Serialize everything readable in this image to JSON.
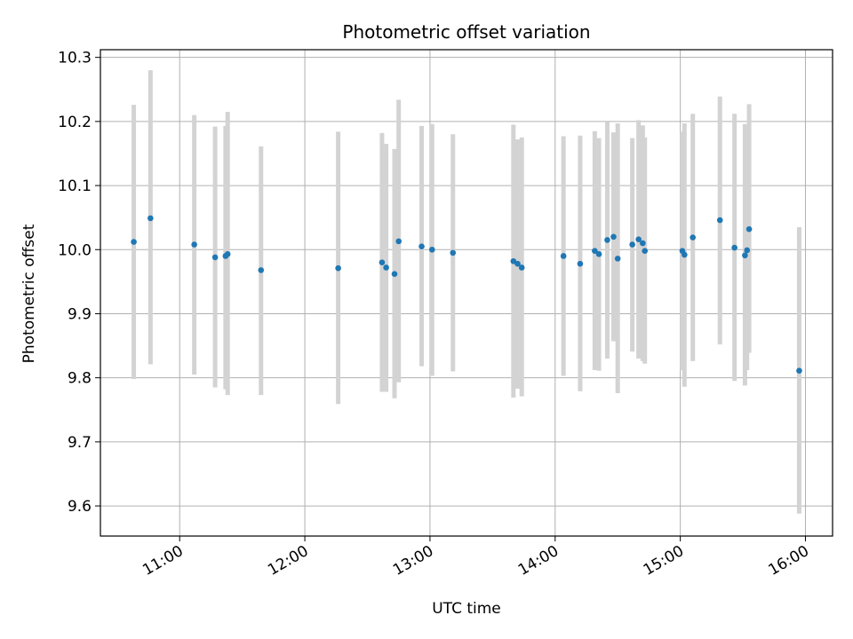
{
  "chart_data": {
    "type": "scatter",
    "title": "Photometric offset variation",
    "xlabel": "UTC time",
    "ylabel": "Photometric offset",
    "x_ticks": [
      "11:00",
      "12:00",
      "13:00",
      "14:00",
      "15:00",
      "16:00"
    ],
    "y_ticks": [
      "9.6",
      "9.7",
      "9.8",
      "9.9",
      "10.0",
      "10.1",
      "10.2",
      "10.3"
    ],
    "xlim": [
      "10:22",
      "16:13"
    ],
    "ylim": [
      9.553,
      10.312
    ],
    "grid": true,
    "colors": {
      "point": "#1f77b4",
      "errorbar": "#d3d3d3",
      "grid": "#b0b0b0"
    },
    "series": [
      {
        "points": [
          {
            "t": "10:38",
            "y": 10.012,
            "lo": 9.798,
            "hi": 10.226
          },
          {
            "t": "10:46",
            "y": 10.049,
            "lo": 9.821,
            "hi": 10.28
          },
          {
            "t": "11:07",
            "y": 10.008,
            "lo": 9.805,
            "hi": 10.21
          },
          {
            "t": "11:17",
            "y": 9.988,
            "lo": 9.785,
            "hi": 10.192
          },
          {
            "t": "11:22",
            "y": 9.99,
            "lo": 9.782,
            "hi": 10.193
          },
          {
            "t": "11:23",
            "y": 9.993,
            "lo": 9.773,
            "hi": 10.215
          },
          {
            "t": "11:39",
            "y": 9.968,
            "lo": 9.773,
            "hi": 10.161
          },
          {
            "t": "12:16",
            "y": 9.971,
            "lo": 9.759,
            "hi": 10.184
          },
          {
            "t": "12:37",
            "y": 9.98,
            "lo": 9.778,
            "hi": 10.182
          },
          {
            "t": "12:39",
            "y": 9.972,
            "lo": 9.778,
            "hi": 10.165
          },
          {
            "t": "12:43",
            "y": 9.962,
            "lo": 9.768,
            "hi": 10.157
          },
          {
            "t": "12:45",
            "y": 10.013,
            "lo": 9.793,
            "hi": 10.234
          },
          {
            "t": "12:56",
            "y": 10.005,
            "lo": 9.818,
            "hi": 10.193
          },
          {
            "t": "13:01",
            "y": 10.0,
            "lo": 9.803,
            "hi": 10.196
          },
          {
            "t": "13:11",
            "y": 9.995,
            "lo": 9.81,
            "hi": 10.18
          },
          {
            "t": "13:40",
            "y": 9.982,
            "lo": 9.769,
            "hi": 10.195
          },
          {
            "t": "13:42",
            "y": 9.978,
            "lo": 9.783,
            "hi": 10.172
          },
          {
            "t": "13:44",
            "y": 9.972,
            "lo": 9.771,
            "hi": 10.175
          },
          {
            "t": "14:04",
            "y": 9.99,
            "lo": 9.803,
            "hi": 10.177
          },
          {
            "t": "14:12",
            "y": 9.978,
            "lo": 9.779,
            "hi": 10.178
          },
          {
            "t": "14:19",
            "y": 9.998,
            "lo": 9.812,
            "hi": 10.185
          },
          {
            "t": "14:21",
            "y": 9.993,
            "lo": 9.811,
            "hi": 10.174
          },
          {
            "t": "14:25",
            "y": 10.015,
            "lo": 9.83,
            "hi": 10.199
          },
          {
            "t": "14:28",
            "y": 10.02,
            "lo": 9.857,
            "hi": 10.183
          },
          {
            "t": "14:30",
            "y": 9.986,
            "lo": 9.776,
            "hi": 10.197
          },
          {
            "t": "14:37",
            "y": 10.008,
            "lo": 9.841,
            "hi": 10.174
          },
          {
            "t": "14:40",
            "y": 10.016,
            "lo": 9.83,
            "hi": 10.202
          },
          {
            "t": "14:42",
            "y": 10.01,
            "lo": 9.826,
            "hi": 10.194
          },
          {
            "t": "14:43",
            "y": 9.998,
            "lo": 9.822,
            "hi": 10.175
          },
          {
            "t": "15:01",
            "y": 9.998,
            "lo": 9.812,
            "hi": 10.184
          },
          {
            "t": "15:02",
            "y": 9.992,
            "lo": 9.786,
            "hi": 10.197
          },
          {
            "t": "15:06",
            "y": 10.019,
            "lo": 9.826,
            "hi": 10.212
          },
          {
            "t": "15:19",
            "y": 10.046,
            "lo": 9.852,
            "hi": 10.239
          },
          {
            "t": "15:26",
            "y": 10.003,
            "lo": 9.795,
            "hi": 10.212
          },
          {
            "t": "15:31",
            "y": 9.991,
            "lo": 9.788,
            "hi": 10.196
          },
          {
            "t": "15:32",
            "y": 9.999,
            "lo": 9.812,
            "hi": 10.186
          },
          {
            "t": "15:33",
            "y": 10.032,
            "lo": 9.839,
            "hi": 10.227
          },
          {
            "t": "15:57",
            "y": 9.811,
            "lo": 9.588,
            "hi": 10.035
          }
        ]
      }
    ]
  }
}
